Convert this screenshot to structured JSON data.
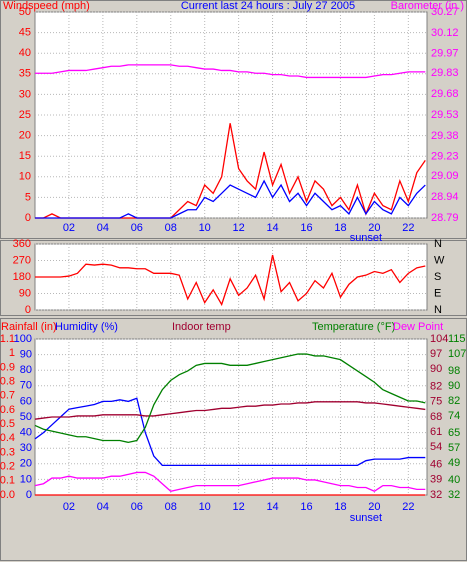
{
  "chart_data": [
    {
      "type": "line",
      "title": "Current last 24 hours : July 27 2005",
      "x": [
        0,
        0.5,
        1,
        1.5,
        2,
        2.5,
        3,
        3.5,
        4,
        4.5,
        5,
        5.5,
        6,
        6.5,
        7,
        7.5,
        8,
        8.5,
        9,
        9.5,
        10,
        10.5,
        11,
        11.5,
        12,
        12.5,
        13,
        13.5,
        14,
        14.5,
        15,
        15.5,
        16,
        16.5,
        17,
        17.5,
        18,
        18.5,
        19,
        19.5,
        20,
        20.5,
        21,
        21.5,
        22,
        22.5,
        23
      ],
      "xlim": [
        0,
        23.1
      ],
      "xticks": [
        {
          "value": 2,
          "label": "02"
        },
        {
          "value": 4,
          "label": "04"
        },
        {
          "value": 6,
          "label": "06"
        },
        {
          "value": 8,
          "label": "08"
        },
        {
          "value": 10,
          "label": "10"
        },
        {
          "value": 12,
          "label": "12"
        },
        {
          "value": 14,
          "label": "14"
        },
        {
          "value": 16,
          "label": "16"
        },
        {
          "value": 18,
          "label": "18"
        },
        {
          "value": 20,
          "label": "20"
        },
        {
          "value": 22,
          "label": "22"
        }
      ],
      "ylim": [
        0,
        50
      ],
      "yticks": [
        0,
        5,
        10,
        15,
        20,
        25,
        30,
        35,
        40,
        45,
        50
      ],
      "y2lim": [
        28.79,
        30.27
      ],
      "y2ticks": [
        28.79,
        28.94,
        29.09,
        29.23,
        29.38,
        29.53,
        29.68,
        29.83,
        29.97,
        30.12,
        30.27
      ],
      "grid": true,
      "annotations": [
        {
          "text": "sunset",
          "x": 19.5
        }
      ],
      "series": [
        {
          "name": "Windspeed (mph)",
          "color": "#ff0000",
          "axis": "y",
          "values": [
            0,
            0,
            1,
            0,
            0,
            0,
            0,
            0,
            0,
            0,
            0,
            0,
            0,
            0,
            0,
            0,
            0,
            2,
            4,
            3,
            8,
            6,
            10,
            23,
            12,
            9,
            7,
            16,
            8,
            13,
            6,
            10,
            4,
            9,
            7,
            3,
            5,
            2,
            8,
            1,
            6,
            3,
            2,
            9,
            4,
            11,
            14
          ]
        },
        {
          "color": "#0000ff",
          "axis": "y",
          "values": [
            0,
            0,
            0,
            0,
            0,
            0,
            0,
            0,
            0,
            0,
            0,
            1,
            0,
            0,
            0,
            0,
            0,
            1,
            2,
            2,
            5,
            4,
            6,
            8,
            7,
            6,
            5,
            9,
            5,
            8,
            4,
            6,
            3,
            6,
            4,
            2,
            3,
            1,
            5,
            1,
            4,
            2,
            1,
            5,
            3,
            6,
            8
          ]
        },
        {
          "name": "Barometer (in.)",
          "color": "#ff00ff",
          "axis": "y2",
          "values": [
            29.83,
            29.83,
            29.83,
            29.84,
            29.85,
            29.85,
            29.85,
            29.86,
            29.87,
            29.88,
            29.88,
            29.89,
            29.89,
            29.89,
            29.89,
            29.89,
            29.89,
            29.88,
            29.88,
            29.87,
            29.86,
            29.86,
            29.85,
            29.85,
            29.84,
            29.84,
            29.83,
            29.83,
            29.82,
            29.82,
            29.81,
            29.81,
            29.8,
            29.8,
            29.8,
            29.8,
            29.8,
            29.8,
            29.8,
            29.8,
            29.81,
            29.82,
            29.82,
            29.83,
            29.84,
            29.84,
            29.84
          ]
        }
      ]
    },
    {
      "type": "line",
      "x": [
        0,
        0.5,
        1,
        1.5,
        2,
        2.5,
        3,
        3.5,
        4,
        4.5,
        5,
        5.5,
        6,
        6.5,
        7,
        7.5,
        8,
        8.5,
        9,
        9.5,
        10,
        10.5,
        11,
        11.5,
        12,
        12.5,
        13,
        13.5,
        14,
        14.5,
        15,
        15.5,
        16,
        16.5,
        17,
        17.5,
        18,
        18.5,
        19,
        19.5,
        20,
        20.5,
        21,
        21.5,
        22,
        22.5,
        23
      ],
      "xlim": [
        0,
        23.1
      ],
      "ylim": [
        0,
        360
      ],
      "yticks": [
        0,
        90,
        180,
        270,
        360
      ],
      "y2lim": [
        0,
        360
      ],
      "y2ticks": [
        {
          "value": 0,
          "label": "N"
        },
        {
          "value": 90,
          "label": "E"
        },
        {
          "value": 180,
          "label": "S"
        },
        {
          "value": 270,
          "label": "W"
        },
        {
          "value": 360,
          "label": "N"
        }
      ],
      "grid": true,
      "series": [
        {
          "color": "#ff0000",
          "axis": "y",
          "values": [
            180,
            180,
            180,
            180,
            185,
            200,
            250,
            245,
            250,
            245,
            230,
            230,
            225,
            225,
            200,
            200,
            200,
            190,
            60,
            150,
            40,
            110,
            30,
            170,
            80,
            120,
            190,
            60,
            300,
            100,
            150,
            50,
            90,
            160,
            120,
            200,
            70,
            140,
            180,
            190,
            210,
            200,
            220,
            150,
            200,
            230,
            240
          ]
        }
      ]
    },
    {
      "type": "line",
      "x": [
        0,
        0.5,
        1,
        1.5,
        2,
        2.5,
        3,
        3.5,
        4,
        4.5,
        5,
        5.5,
        6,
        6.5,
        7,
        7.5,
        8,
        8.5,
        9,
        9.5,
        10,
        10.5,
        11,
        11.5,
        12,
        12.5,
        13,
        13.5,
        14,
        14.5,
        15,
        15.5,
        16,
        16.5,
        17,
        17.5,
        18,
        18.5,
        19,
        19.5,
        20,
        20.5,
        21,
        21.5,
        22,
        22.5,
        23
      ],
      "xlim": [
        0,
        23.1
      ],
      "xticks": [
        {
          "value": 2,
          "label": "02"
        },
        {
          "value": 4,
          "label": "04"
        },
        {
          "value": 6,
          "label": "06"
        },
        {
          "value": 8,
          "label": "08"
        },
        {
          "value": 10,
          "label": "10"
        },
        {
          "value": 12,
          "label": "12"
        },
        {
          "value": 14,
          "label": "14"
        },
        {
          "value": 16,
          "label": "16"
        },
        {
          "value": 18,
          "label": "18"
        },
        {
          "value": 20,
          "label": "20"
        },
        {
          "value": 22,
          "label": "22"
        }
      ],
      "ylim": [
        0,
        1.1
      ],
      "yticks": [
        {
          "value": 0,
          "label": "0.0"
        },
        0.1,
        0.2,
        0.3,
        0.4,
        0.5,
        0.6,
        0.7,
        0.8,
        0.9,
        1,
        1.1
      ],
      "y4lim": [
        0,
        100
      ],
      "y4ticks": [
        0,
        10,
        20,
        30,
        40,
        50,
        60,
        70,
        80,
        90,
        100
      ],
      "y2lim": [
        32,
        115
      ],
      "y2ticks": [
        32,
        40,
        49,
        57,
        65,
        74,
        82,
        90,
        98,
        107,
        115
      ],
      "y3lim": [
        32,
        104
      ],
      "y3ticks": [
        32,
        39,
        46,
        54,
        61,
        68,
        75,
        82,
        90,
        97,
        104
      ],
      "grid": true,
      "annotations": [
        {
          "text": "sunset",
          "x": 19.5
        }
      ],
      "series": [
        {
          "name": "Rainfall (in)",
          "color": "#ff0000",
          "axis": "y",
          "values": [
            0,
            0,
            0,
            0,
            0,
            0,
            0,
            0,
            0,
            0,
            0,
            0,
            0,
            0,
            0,
            0,
            0,
            0,
            0,
            0,
            0,
            0,
            0,
            0,
            0,
            0,
            0,
            0,
            0,
            0,
            0,
            0,
            0,
            0,
            0,
            0,
            0,
            0,
            0,
            0,
            0,
            0,
            0,
            0,
            0,
            0,
            0
          ]
        },
        {
          "name": "Humidity (%)",
          "color": "#0000ff",
          "axis": "y4",
          "values": [
            36,
            40,
            45,
            50,
            55,
            56,
            57,
            58,
            60,
            60,
            61,
            60,
            62,
            40,
            25,
            19,
            19,
            19,
            19,
            19,
            19,
            19,
            19,
            19,
            19,
            19,
            19,
            19,
            19,
            19,
            19,
            19,
            19,
            19,
            19,
            19,
            19,
            19,
            19,
            22,
            23,
            23,
            23,
            23,
            24,
            24,
            24
          ]
        },
        {
          "name": "Indoor temp",
          "color": "#a00030",
          "axis": "y3",
          "values": [
            67,
            67.5,
            68,
            68,
            68,
            68.5,
            68.5,
            68.5,
            69,
            69,
            69,
            69,
            69,
            68.5,
            68.5,
            69,
            69.5,
            70,
            70.5,
            71,
            71,
            71.5,
            72,
            72,
            72.5,
            73,
            73,
            73.5,
            73.5,
            74,
            74,
            74.5,
            74.5,
            75,
            75,
            75,
            75,
            75,
            75,
            74.5,
            74.5,
            74,
            73.5,
            73,
            72.5,
            72,
            71.5
          ]
        },
        {
          "name": "Temperature (°F)",
          "color": "#008000",
          "axis": "y2",
          "values": [
            69,
            67,
            66,
            65,
            64,
            63,
            63,
            62,
            61,
            61,
            61,
            60,
            61,
            68,
            80,
            88,
            93,
            96,
            98,
            101,
            102,
            102,
            102,
            101,
            101,
            101,
            102,
            103,
            104,
            105,
            106,
            107,
            107,
            106,
            106,
            105,
            104,
            101,
            98,
            95,
            92,
            88,
            86,
            84,
            82,
            82,
            81
          ]
        },
        {
          "name": "Dew Point",
          "color": "#ff00ff",
          "axis": "y2",
          "values": [
            37,
            38,
            41,
            41,
            42,
            41,
            41,
            41,
            41,
            42,
            42,
            43,
            44,
            44,
            42,
            38,
            34,
            35,
            36,
            37,
            37,
            37,
            37,
            37,
            37,
            38,
            39,
            40,
            41,
            41,
            41,
            41,
            40,
            40,
            39,
            38,
            37,
            37,
            36,
            36,
            34,
            37,
            37,
            36,
            36,
            35,
            35
          ]
        }
      ]
    }
  ]
}
